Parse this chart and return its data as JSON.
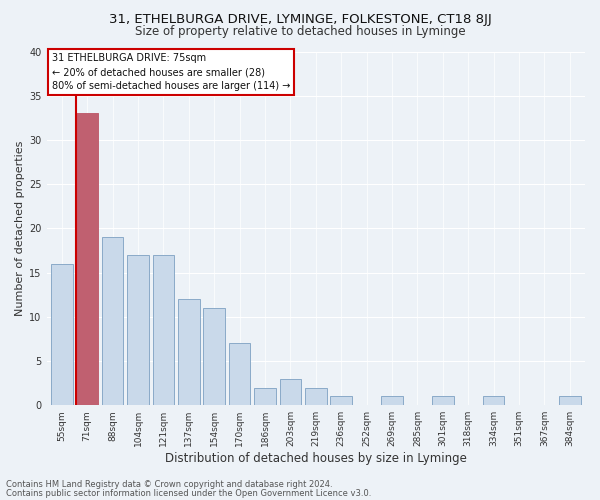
{
  "title": "31, ETHELBURGA DRIVE, LYMINGE, FOLKESTONE, CT18 8JJ",
  "subtitle": "Size of property relative to detached houses in Lyminge",
  "xlabel": "Distribution of detached houses by size in Lyminge",
  "ylabel": "Number of detached properties",
  "categories": [
    "55sqm",
    "71sqm",
    "88sqm",
    "104sqm",
    "121sqm",
    "137sqm",
    "154sqm",
    "170sqm",
    "186sqm",
    "203sqm",
    "219sqm",
    "236sqm",
    "252sqm",
    "269sqm",
    "285sqm",
    "301sqm",
    "318sqm",
    "334sqm",
    "351sqm",
    "367sqm",
    "384sqm"
  ],
  "values": [
    16,
    33,
    19,
    17,
    17,
    12,
    11,
    7,
    2,
    3,
    2,
    1,
    0,
    1,
    0,
    1,
    0,
    1,
    0,
    0,
    1
  ],
  "bar_color_normal": "#c9d9ea",
  "bar_color_highlight": "#c06070",
  "bar_edge_color": "#8aaac8",
  "highlight_index": 1,
  "ylim": [
    0,
    40
  ],
  "yticks": [
    0,
    5,
    10,
    15,
    20,
    25,
    30,
    35,
    40
  ],
  "annotation_line1": "31 ETHELBURGA DRIVE: 75sqm",
  "annotation_line2": "← 20% of detached houses are smaller (28)",
  "annotation_line3": "80% of semi-detached houses are larger (114) →",
  "annotation_box_color": "#ffffff",
  "annotation_box_edge": "#cc0000",
  "footer_line1": "Contains HM Land Registry data © Crown copyright and database right 2024.",
  "footer_line2": "Contains public sector information licensed under the Open Government Licence v3.0.",
  "bg_color": "#edf2f7",
  "grid_color": "#ffffff",
  "title_fontsize": 9.5,
  "subtitle_fontsize": 8.5,
  "axis_label_fontsize": 8,
  "tick_fontsize": 6.5,
  "footer_fontsize": 6,
  "annotation_fontsize": 7
}
